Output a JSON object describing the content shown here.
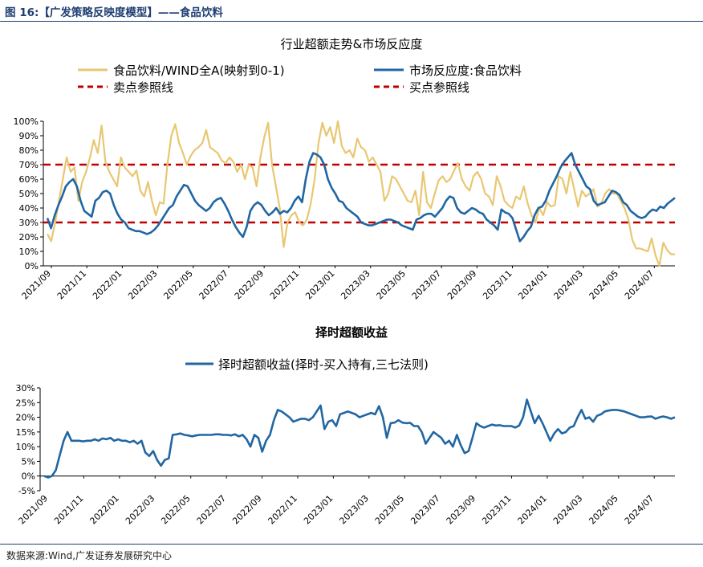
{
  "header": {
    "figure_title": "图 16:【广发策略反映度模型】——食品饮料"
  },
  "footer": {
    "source": "数据来源:Wind,广发证券发展研究中心"
  },
  "colors": {
    "sector_line": "#e8c771",
    "reaction_line": "#2166a3",
    "ref_line": "#c00000",
    "excess_line": "#2166a3",
    "title_color": "#1f3f73"
  },
  "chart_data": [
    {
      "type": "line",
      "title": "行业超额走势&市场反应度",
      "x_tick_labels": [
        "2021/09",
        "2021/11",
        "2022/01",
        "2022/03",
        "2022/05",
        "2022/07",
        "2022/09",
        "2022/11",
        "2023/01",
        "2023/03",
        "2023/05",
        "2023/07",
        "2023/09",
        "2023/11",
        "2024/01",
        "2024/03",
        "2024/05",
        "2024/07"
      ],
      "y_tick_labels": [
        "0%",
        "10%",
        "20%",
        "30%",
        "40%",
        "50%",
        "60%",
        "70%",
        "80%",
        "90%",
        "100%"
      ],
      "ylim": [
        0,
        100
      ],
      "grid": false,
      "legend_position": "top",
      "legend_labels": [
        "食品饮料/WIND全A(映射到0-1)",
        "市场反应度:食品饮料",
        "卖点参照线",
        "买点参照线"
      ],
      "series": [
        {
          "name": "食品饮料/WIND全A(映射到0-1)",
          "values": [
            22,
            17,
            30,
            45,
            60,
            75,
            65,
            68,
            45,
            58,
            65,
            75,
            87,
            78,
            97,
            72,
            65,
            60,
            55,
            75,
            68,
            65,
            62,
            66,
            52,
            48,
            58,
            45,
            35,
            44,
            43,
            70,
            90,
            98,
            85,
            78,
            70,
            76,
            80,
            82,
            85,
            94,
            82,
            80,
            78,
            73,
            71,
            75,
            72,
            65,
            70,
            60,
            70,
            68,
            55,
            75,
            89,
            99,
            70,
            55,
            40,
            13,
            30,
            35,
            37,
            30,
            28,
            32,
            43,
            60,
            85,
            99,
            90,
            96,
            85,
            100,
            83,
            78,
            80,
            75,
            88,
            82,
            80,
            72,
            75,
            70,
            65,
            45,
            50,
            62,
            60,
            55,
            50,
            45,
            44,
            52,
            35,
            65,
            44,
            40,
            50,
            59,
            62,
            58,
            60,
            66,
            71,
            60,
            55,
            52,
            62,
            65,
            60,
            50,
            48,
            42,
            62,
            55,
            45,
            42,
            40,
            48,
            46,
            55,
            43,
            35,
            30,
            40,
            35,
            44,
            41,
            42,
            62,
            60,
            50,
            65,
            53,
            41,
            52,
            48,
            50,
            53,
            41,
            43,
            50,
            53,
            50,
            50,
            45,
            40,
            32,
            18,
            12,
            12,
            11,
            10,
            19,
            7,
            0,
            16,
            11,
            8,
            8
          ]
        },
        {
          "name": "市场反应度:食品饮料",
          "values": [
            33,
            26,
            35,
            42,
            48,
            55,
            58,
            60,
            55,
            45,
            38,
            36,
            34,
            45,
            47,
            51,
            52,
            50,
            42,
            36,
            32,
            30,
            26,
            25,
            24,
            24,
            23,
            22,
            23,
            25,
            28,
            32,
            36,
            40,
            42,
            48,
            52,
            56,
            55,
            50,
            45,
            42,
            40,
            38,
            40,
            44,
            46,
            47,
            43,
            38,
            32,
            27,
            23,
            20,
            27,
            38,
            42,
            44,
            42,
            38,
            35,
            37,
            40,
            36,
            38,
            37,
            40,
            45,
            48,
            44,
            60,
            72,
            78,
            77,
            75,
            70,
            60,
            54,
            50,
            45,
            44,
            40,
            38,
            36,
            34,
            30,
            29,
            28,
            28,
            29,
            30,
            31,
            32,
            32,
            31,
            30,
            28,
            27,
            26,
            25,
            32,
            33,
            35,
            36,
            36,
            34,
            37,
            40,
            45,
            48,
            47,
            40,
            37,
            36,
            38,
            40,
            39,
            37,
            36,
            32,
            30,
            28,
            25,
            39,
            37,
            36,
            33,
            25,
            17,
            20,
            24,
            27,
            35,
            40,
            41,
            45,
            52,
            57,
            62,
            68,
            72,
            75,
            78,
            70,
            65,
            60,
            55,
            53,
            45,
            42,
            43,
            44,
            48,
            52,
            51,
            49,
            44,
            42,
            38,
            36,
            34,
            33,
            34,
            37,
            39,
            38,
            41,
            40,
            43,
            45,
            47
          ]
        },
        {
          "name": "卖点参照线",
          "values": [
            70
          ]
        },
        {
          "name": "买点参照线",
          "values": [
            30
          ]
        }
      ]
    },
    {
      "type": "line",
      "title": "择时超额收益",
      "x_tick_labels": [
        "2021/09",
        "2021/11",
        "2022/01",
        "2022/03",
        "2022/05",
        "2022/07",
        "2022/09",
        "2022/11",
        "2023/01",
        "2023/03",
        "2023/05",
        "2023/07",
        "2023/09",
        "2023/11",
        "2024/01",
        "2024/03",
        "2024/05",
        "2024/07"
      ],
      "y_tick_labels": [
        "-5%",
        "0%",
        "5%",
        "10%",
        "15%",
        "20%",
        "25%",
        "30%"
      ],
      "ylim": [
        -5,
        30
      ],
      "grid": false,
      "legend_position": "top",
      "legend_labels": [
        "择时超额收益(择时-买入持有,三七法则)"
      ],
      "series": [
        {
          "name": "择时超额收益(择时-买入持有,三七法则)",
          "values": [
            0,
            -0.5,
            0,
            2,
            7,
            12,
            15,
            12,
            12,
            12,
            11.8,
            12,
            12,
            12.5,
            12,
            12.8,
            12.5,
            13,
            12,
            12.5,
            12,
            12,
            11.5,
            12,
            11,
            12,
            8,
            6.8,
            8.5,
            5.5,
            3.5,
            5.5,
            6,
            14,
            14.2,
            14.5,
            14,
            13.8,
            13.5,
            13.8,
            14,
            14,
            14,
            14,
            14.2,
            14.2,
            14,
            14,
            13.8,
            14.2,
            13.5,
            14,
            12.5,
            10,
            14,
            13,
            8.3,
            12,
            14,
            19,
            22.5,
            22,
            21,
            20,
            18.5,
            19,
            19.5,
            19.5,
            19,
            20,
            22,
            24,
            16,
            18.5,
            19,
            17,
            21,
            21.5,
            22,
            21.5,
            21,
            20,
            20.5,
            21,
            21.5,
            21,
            23.8,
            20,
            13,
            18,
            18.2,
            19,
            18.2,
            18,
            18.1,
            17,
            17,
            15,
            11,
            13,
            15,
            14,
            13,
            11,
            12,
            10,
            14,
            10.5,
            7.8,
            8.5,
            13,
            18,
            17,
            16.5,
            17,
            17.5,
            17.2,
            17.3,
            17,
            17,
            17,
            16.5,
            17.2,
            20,
            26,
            22,
            18,
            20.5,
            18,
            15,
            12,
            14.5,
            16,
            14.5,
            15,
            16.5,
            17,
            20,
            22.5,
            19.5,
            20,
            18.5,
            20.5,
            21,
            22,
            22.3,
            22.5,
            22.5,
            22.3,
            22,
            21.5,
            21,
            20.5,
            20,
            20,
            20.2,
            20.3,
            19.5,
            20,
            20.3,
            20,
            19.5,
            20
          ]
        }
      ]
    }
  ]
}
